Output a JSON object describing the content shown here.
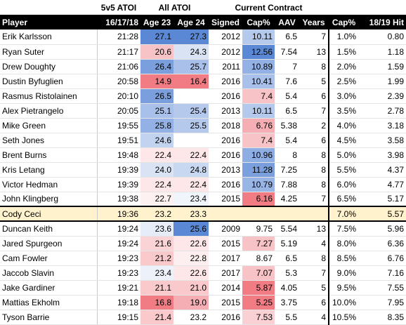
{
  "groups": {
    "toi": "5v5 ATOI",
    "all_atoi": "All ATOI",
    "contract": "Current Contract"
  },
  "headers": [
    "Player",
    "16/17/18",
    "Age 23",
    "Age 24",
    "Signed",
    "Cap%",
    "AAV",
    "Years",
    "Cap%",
    "18/19 Hit"
  ],
  "rows": [
    {
      "player": "Erik Karlsson",
      "toi": "21:28",
      "a23": "27.1",
      "a24": "27.3",
      "signed": "2012",
      "cap": "10.11",
      "aav": "6.5",
      "years": "7",
      "cap2": "1.0%",
      "hit": "0.80",
      "c23": "#5b88d4",
      "c24": "#5b88d4",
      "ccap": "#b4c9ec"
    },
    {
      "player": "Ryan Suter",
      "toi": "21:17",
      "a23": "20.6",
      "a24": "24.3",
      "signed": "2012",
      "cap": "12.56",
      "aav": "7.54",
      "years": "13",
      "cap2": "1.5%",
      "hit": "1.18",
      "c23": "#f7c3c6",
      "c24": "#d9e3f4",
      "ccap": "#5b88d4"
    },
    {
      "player": "Drew Doughty",
      "toi": "21:06",
      "a23": "26.4",
      "a24": "25.7",
      "signed": "2011",
      "cap": "10.89",
      "aav": "7",
      "years": "8",
      "cap2": "2.0%",
      "hit": "1.59",
      "c23": "#7a9fdc",
      "c24": "#a9c1ea",
      "ccap": "#93b1e4"
    },
    {
      "player": "Dustin Byfuglien",
      "toi": "20:58",
      "a23": "14.9",
      "a24": "16.4",
      "signed": "2016",
      "cap": "10.41",
      "aav": "7.6",
      "years": "5",
      "cap2": "2.5%",
      "hit": "1.99",
      "c23": "#f27c84",
      "c24": "#f27c84",
      "ccap": "#a9c1ea"
    },
    {
      "player": "Rasmus Ristolainen",
      "toi": "20:10",
      "a23": "26.5",
      "a24": "",
      "signed": "2016",
      "cap": "7.4",
      "aav": "5.4",
      "years": "6",
      "cap2": "3.0%",
      "hit": "2.39",
      "c23": "#7a9fdc",
      "c24": "#ffffff",
      "ccap": "#f7c3c6"
    },
    {
      "player": "Alex Pietrangelo",
      "toi": "20:05",
      "a23": "25.1",
      "a24": "25.4",
      "signed": "2013",
      "cap": "10.11",
      "aav": "6.5",
      "years": "7",
      "cap2": "3.5%",
      "hit": "2.78",
      "c23": "#a9c1ea",
      "c24": "#b4c9ec",
      "ccap": "#b4c9ec"
    },
    {
      "player": "Mike Green",
      "toi": "19:55",
      "a23": "25.8",
      "a24": "25.5",
      "signed": "2018",
      "cap": "6.76",
      "aav": "5.38",
      "years": "2",
      "cap2": "4.0%",
      "hit": "3.18",
      "c23": "#93b1e4",
      "c24": "#b4c9ec",
      "ccap": "#f5aeb3"
    },
    {
      "player": "Seth Jones",
      "toi": "19:51",
      "a23": "24.6",
      "a24": "",
      "signed": "2016",
      "cap": "7.4",
      "aav": "5.4",
      "years": "6",
      "cap2": "4.5%",
      "hit": "3.58",
      "c23": "#c2d3f0",
      "c24": "#ffffff",
      "ccap": "#f7c3c6"
    },
    {
      "player": "Brent Burns",
      "toi": "19:48",
      "a23": "22.4",
      "a24": "22.4",
      "signed": "2016",
      "cap": "10.96",
      "aav": "8",
      "years": "8",
      "cap2": "5.0%",
      "hit": "3.98",
      "c23": "#fde7e8",
      "c24": "#fde7e8",
      "ccap": "#8dadE3"
    },
    {
      "player": "Kris Letang",
      "toi": "19:39",
      "a23": "24.0",
      "a24": "24.8",
      "signed": "2013",
      "cap": "11.28",
      "aav": "7.25",
      "years": "8",
      "cap2": "5.5%",
      "hit": "4.37",
      "c23": "#d9e3f4",
      "c24": "#c9d8f1",
      "ccap": "#7a9fdc"
    },
    {
      "player": "Victor Hedman",
      "toi": "19:39",
      "a23": "22.4",
      "a24": "22.4",
      "signed": "2016",
      "cap": "10.79",
      "aav": "7.88",
      "years": "8",
      "cap2": "6.0%",
      "hit": "4.77",
      "c23": "#fde7e8",
      "c24": "#fde7e8",
      "ccap": "#98b5e6"
    },
    {
      "player": "John Klingberg",
      "toi": "19:38",
      "a23": "22.7",
      "a24": "23.4",
      "signed": "2015",
      "cap": "6.16",
      "aav": "4.25",
      "years": "7",
      "cap2": "6.5%",
      "hit": "5.17",
      "c23": "#fdf1f2",
      "c24": "#f0f4fb",
      "ccap": "#f27c84"
    },
    {
      "player": "Cody Ceci",
      "toi": "19:36",
      "a23": "23.2",
      "a24": "23.3",
      "signed": "",
      "cap": "",
      "aav": "",
      "years": "",
      "cap2": "7.0%",
      "hit": "5.57",
      "c23": "#fff2cc",
      "c24": "#fff2cc",
      "ccap": "#fff2cc",
      "highlight": true
    },
    {
      "player": "Duncan Keith",
      "toi": "19:24",
      "a23": "23.6",
      "a24": "25.6",
      "signed": "2009",
      "cap": "9.75",
      "aav": "5.54",
      "years": "13",
      "cap2": "7.5%",
      "hit": "5.96",
      "c23": "#e6edf8",
      "c24": "#5b88d4",
      "ccap": "#ffffff"
    },
    {
      "player": "Jared Spurgeon",
      "toi": "19:24",
      "a23": "21.6",
      "a24": "22.6",
      "signed": "2015",
      "cap": "7.27",
      "aav": "5.19",
      "years": "4",
      "cap2": "8.0%",
      "hit": "6.36",
      "c23": "#fad3d6",
      "c24": "#fde7e8",
      "ccap": "#f7c3c6"
    },
    {
      "player": "Cam Fowler",
      "toi": "19:23",
      "a23": "21.2",
      "a24": "22.8",
      "signed": "2017",
      "cap": "8.67",
      "aav": "6.5",
      "years": "8",
      "cap2": "8.5%",
      "hit": "6.76",
      "c23": "#f9c9cc",
      "c24": "#fdeeef",
      "ccap": "#ffffff"
    },
    {
      "player": "Jaccob Slavin",
      "toi": "19:23",
      "a23": "23.4",
      "a24": "22.6",
      "signed": "2017",
      "cap": "7.07",
      "aav": "5.3",
      "years": "7",
      "cap2": "9.0%",
      "hit": "7.16",
      "c23": "#edf2fa",
      "c24": "#fde7e8",
      "ccap": "#f7c3c6"
    },
    {
      "player": "Jake Gardiner",
      "toi": "19:21",
      "a23": "21.1",
      "a24": "21.0",
      "signed": "2014",
      "cap": "5.87",
      "aav": "4.05",
      "years": "5",
      "cap2": "9.5%",
      "hit": "7.55",
      "c23": "#f9c9cc",
      "c24": "#f9c9cc",
      "ccap": "#f27c84"
    },
    {
      "player": "Mattias Ekholm",
      "toi": "19:18",
      "a23": "16.8",
      "a24": "19.0",
      "signed": "2015",
      "cap": "5.25",
      "aav": "3.75",
      "years": "6",
      "cap2": "10.0%",
      "hit": "7.95",
      "c23": "#f27c84",
      "c24": "#f5aeb3",
      "ccap": "#f27c84"
    },
    {
      "player": "Tyson Barrie",
      "toi": "19:15",
      "a23": "21.4",
      "a24": "23.2",
      "signed": "2016",
      "cap": "7.53",
      "aav": "5.5",
      "years": "4",
      "cap2": "10.5%",
      "hit": "8.35",
      "c23": "#f9c9cc",
      "c24": "#ffffff",
      "ccap": "#f9d0d3"
    }
  ]
}
